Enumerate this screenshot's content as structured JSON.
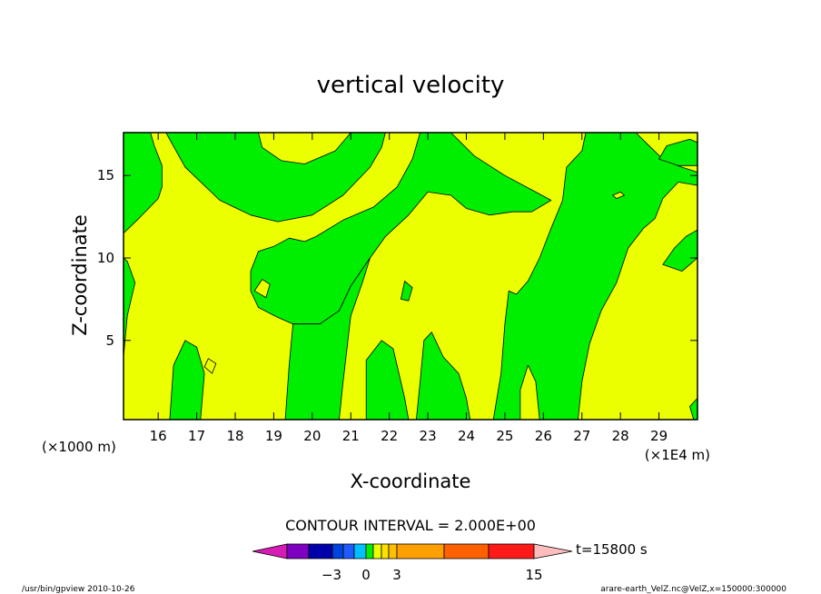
{
  "chart_data": {
    "type": "heatmap",
    "title": "vertical velocity",
    "xlabel": "X-coordinate",
    "ylabel": "Z-coordinate",
    "x_unit_left": "(×1000 m)",
    "x_unit_right": "(×1E4 m)",
    "x_ticks": [
      16,
      17,
      18,
      19,
      20,
      21,
      22,
      23,
      24,
      25,
      26,
      27,
      28,
      29
    ],
    "y_ticks": [
      5,
      10,
      15
    ],
    "xlim": [
      15.1,
      30.0
    ],
    "ylim": [
      0.2,
      17.6
    ],
    "contour_interval_text": "CONTOUR INTERVAL = 2.000E+00",
    "time_label": "t=15800 s",
    "colorbar": {
      "tick_labels": [
        {
          "value": -3,
          "label": "−3"
        },
        {
          "value": 0,
          "label": "0"
        },
        {
          "value": 3,
          "label": "3"
        },
        {
          "value": 15,
          "label": "15"
        }
      ],
      "colors": [
        "#d61cb4",
        "#7e00c0",
        "#0000aa",
        "#0044e0",
        "#1f5cff",
        "#00c0ff",
        "#00ee00",
        "#ecff00",
        "#ffe000",
        "#ffc000",
        "#ffa000",
        "#ff6000",
        "#ff1a1a",
        "#ff7777",
        "#ffbcbc"
      ],
      "positive_color": "#ecff00",
      "negative_color": "#00ee00"
    },
    "negative_regions": [
      [
        [
          15.1,
          11.5
        ],
        [
          15.5,
          12.4
        ],
        [
          16.0,
          13.6
        ],
        [
          16.1,
          14.3
        ],
        [
          16.1,
          15.6
        ],
        [
          15.9,
          16.8
        ],
        [
          15.8,
          17.6
        ],
        [
          15.1,
          17.6
        ]
      ],
      [
        [
          15.1,
          4.0
        ],
        [
          15.2,
          6.5
        ],
        [
          15.4,
          8.5
        ],
        [
          15.2,
          9.8
        ],
        [
          15.1,
          10.0
        ]
      ],
      [
        [
          16.2,
          17.6
        ],
        [
          16.7,
          15.5
        ],
        [
          17.6,
          13.5
        ],
        [
          18.4,
          12.6
        ],
        [
          19.1,
          12.2
        ],
        [
          20.0,
          12.6
        ],
        [
          20.8,
          13.8
        ],
        [
          21.5,
          15.5
        ],
        [
          21.8,
          16.7
        ],
        [
          21.9,
          17.6
        ],
        [
          21.0,
          17.6
        ],
        [
          20.6,
          16.5
        ],
        [
          19.8,
          15.7
        ],
        [
          19.2,
          15.9
        ],
        [
          18.7,
          16.7
        ],
        [
          18.6,
          17.6
        ]
      ],
      [
        [
          16.3,
          0.2
        ],
        [
          16.4,
          3.5
        ],
        [
          16.7,
          5.0
        ],
        [
          17.0,
          4.6
        ],
        [
          17.2,
          3.0
        ],
        [
          17.1,
          0.2
        ]
      ],
      [
        [
          18.4,
          9.2
        ],
        [
          18.6,
          10.4
        ],
        [
          19.0,
          10.7
        ],
        [
          19.4,
          11.2
        ],
        [
          19.8,
          11.0
        ],
        [
          20.1,
          11.3
        ],
        [
          20.8,
          12.3
        ],
        [
          21.6,
          13.1
        ],
        [
          22.2,
          14.3
        ],
        [
          22.6,
          16.0
        ],
        [
          22.8,
          17.6
        ],
        [
          23.6,
          17.6
        ],
        [
          24.2,
          16.2
        ],
        [
          25.0,
          15.0
        ],
        [
          25.8,
          14.0
        ],
        [
          26.2,
          13.5
        ],
        [
          25.7,
          12.8
        ],
        [
          25.2,
          12.8
        ],
        [
          24.6,
          12.6
        ],
        [
          24.0,
          13.0
        ],
        [
          23.6,
          13.8
        ],
        [
          23.0,
          14.0
        ],
        [
          22.5,
          12.6
        ],
        [
          21.9,
          11.3
        ],
        [
          21.5,
          10.0
        ],
        [
          21.0,
          8.3
        ],
        [
          20.7,
          6.8
        ],
        [
          20.2,
          6.0
        ],
        [
          19.5,
          6.0
        ],
        [
          19.1,
          6.4
        ],
        [
          18.6,
          7.0
        ],
        [
          18.4,
          8.0
        ]
      ],
      [
        [
          19.3,
          0.2
        ],
        [
          19.4,
          3.5
        ],
        [
          19.5,
          6.0
        ],
        [
          20.2,
          6.0
        ],
        [
          20.7,
          6.8
        ],
        [
          21.0,
          8.3
        ],
        [
          21.5,
          10.0
        ],
        [
          21.3,
          8.5
        ],
        [
          21.0,
          6.5
        ],
        [
          20.8,
          2.5
        ],
        [
          20.7,
          0.2
        ]
      ],
      [
        [
          21.4,
          0.2
        ],
        [
          21.4,
          3.8
        ],
        [
          21.8,
          5.0
        ],
        [
          22.1,
          4.5
        ],
        [
          22.4,
          1.5
        ],
        [
          22.5,
          0.2
        ]
      ],
      [
        [
          22.7,
          0.2
        ],
        [
          22.8,
          2.5
        ],
        [
          22.9,
          5.0
        ],
        [
          23.1,
          5.5
        ],
        [
          23.4,
          4.0
        ],
        [
          23.8,
          3.0
        ],
        [
          24.0,
          1.5
        ],
        [
          24.1,
          0.2
        ]
      ],
      [
        [
          22.3,
          7.5
        ],
        [
          22.4,
          8.6
        ],
        [
          22.6,
          8.2
        ],
        [
          22.5,
          7.4
        ]
      ],
      [
        [
          24.7,
          0.2
        ],
        [
          24.9,
          3.0
        ],
        [
          25.0,
          6.0
        ],
        [
          25.1,
          8.0
        ],
        [
          25.3,
          7.8
        ],
        [
          25.6,
          8.6
        ],
        [
          25.9,
          10.0
        ],
        [
          26.2,
          11.8
        ],
        [
          26.5,
          13.5
        ],
        [
          26.6,
          15.5
        ],
        [
          27.0,
          16.5
        ],
        [
          27.1,
          17.6
        ],
        [
          28.4,
          17.6
        ],
        [
          28.7,
          16.9
        ],
        [
          29.1,
          16.0
        ],
        [
          29.6,
          15.5
        ],
        [
          30.0,
          15.2
        ],
        [
          30.0,
          14.4
        ],
        [
          29.5,
          14.6
        ],
        [
          29.1,
          13.6
        ],
        [
          28.9,
          12.4
        ],
        [
          28.6,
          11.8
        ],
        [
          28.2,
          10.6
        ],
        [
          27.9,
          8.5
        ],
        [
          27.5,
          6.8
        ],
        [
          27.2,
          4.8
        ],
        [
          27.0,
          2.5
        ],
        [
          26.9,
          0.2
        ],
        [
          25.9,
          0.2
        ],
        [
          25.8,
          2.5
        ],
        [
          25.6,
          3.5
        ],
        [
          25.4,
          2.0
        ],
        [
          25.4,
          0.2
        ]
      ],
      [
        [
          29.0,
          16.0
        ],
        [
          29.2,
          16.8
        ],
        [
          29.8,
          17.2
        ],
        [
          30.0,
          17.0
        ],
        [
          30.0,
          15.6
        ],
        [
          29.5,
          15.6
        ]
      ],
      [
        [
          29.1,
          9.6
        ],
        [
          29.4,
          10.6
        ],
        [
          29.7,
          11.3
        ],
        [
          30.0,
          11.7
        ],
        [
          30.0,
          10.0
        ],
        [
          29.6,
          9.2
        ]
      ],
      [
        [
          29.8,
          1.0
        ],
        [
          30.0,
          1.5
        ],
        [
          30.0,
          0.2
        ],
        [
          29.9,
          0.2
        ]
      ]
    ],
    "positive_islands": [
      [
        [
          27.8,
          13.8
        ],
        [
          28.0,
          14.0
        ],
        [
          28.1,
          13.8
        ],
        [
          27.9,
          13.6
        ]
      ],
      [
        [
          18.5,
          8.0
        ],
        [
          18.7,
          8.7
        ],
        [
          18.9,
          8.4
        ],
        [
          18.8,
          7.6
        ]
      ],
      [
        [
          17.2,
          3.4
        ],
        [
          17.3,
          3.9
        ],
        [
          17.5,
          3.6
        ],
        [
          17.4,
          3.0
        ]
      ]
    ]
  },
  "footer": {
    "left": "/usr/bin/gpview   2010-10-26",
    "right": "arare-earth_VelZ.nc@VelZ,x=150000:300000"
  }
}
